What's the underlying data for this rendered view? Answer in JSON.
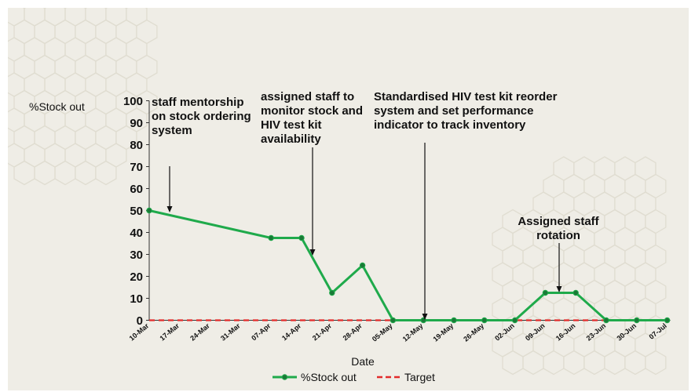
{
  "chart_data": {
    "type": "line",
    "ylabel": "%Stock out",
    "xlabel": "Date",
    "ylim": [
      0,
      100
    ],
    "yticks": [
      "0",
      "10",
      "20",
      "30",
      "40",
      "50",
      "60",
      "70",
      "80",
      "90",
      "100"
    ],
    "categories": [
      "10-Mar",
      "17-Mar",
      "24-Mar",
      "31-Mar",
      "07-Apr",
      "14-Apr",
      "21-Apr",
      "28-Apr",
      "05-May",
      "12-May",
      "19-May",
      "26-May",
      "02-Jun",
      "09-Jun",
      "16-Jun",
      "23-Jun",
      "30-Jun",
      "07-Jul"
    ],
    "series": [
      {
        "name": "%Stock out",
        "color": "#1faa4b",
        "style": "solid-markers",
        "values": [
          50,
          null,
          null,
          null,
          37.5,
          37.5,
          12.5,
          25,
          0,
          0,
          0,
          0,
          0,
          12.5,
          12.5,
          0,
          0,
          0
        ]
      },
      {
        "name": "Target",
        "color": "#e32b2b",
        "style": "dashed",
        "values": [
          0,
          0,
          0,
          0,
          0,
          0,
          0,
          0,
          0,
          0,
          0,
          0,
          0,
          0,
          0,
          0,
          0,
          0
        ]
      }
    ],
    "legend": [
      "%Stock out",
      "Target"
    ],
    "annotations": [
      {
        "text": "staff mentorship on stock ordering system",
        "at": "10-Mar",
        "value": 50
      },
      {
        "text": "assigned staff to monitor stock and HIV test kit availability",
        "at": "14-Apr",
        "value": 30
      },
      {
        "text": "Standardised HIV test kit reorder system and set performance indicator to track inventory",
        "at": "12-May",
        "value": 0
      },
      {
        "text": "Assigned staff rotation",
        "at": "09-Jun",
        "value": 12.5
      }
    ]
  }
}
